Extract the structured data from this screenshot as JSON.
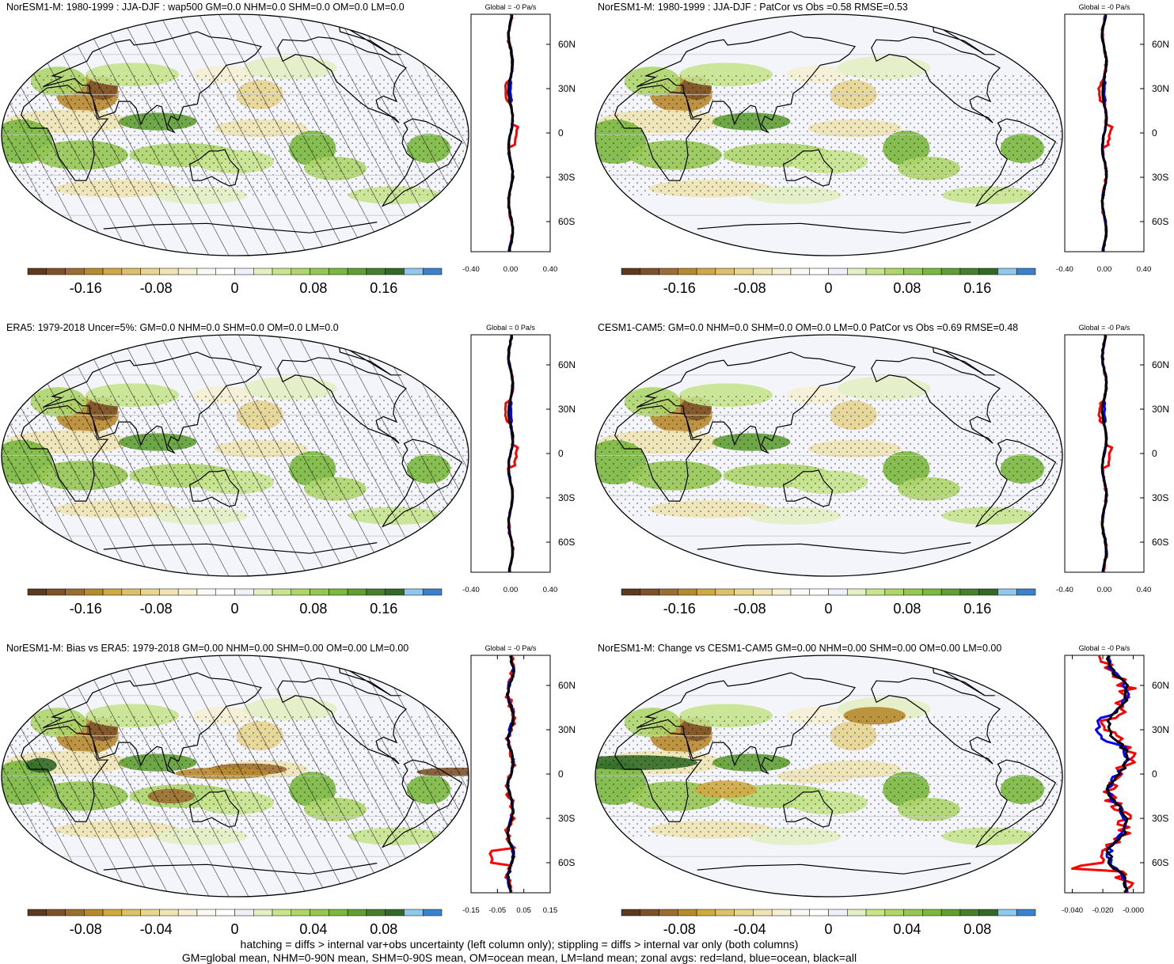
{
  "colors": {
    "palette": [
      "#5c3a1d",
      "#7d5229",
      "#9c6d33",
      "#b88a2f",
      "#cfa942",
      "#dcc16c",
      "#e8d591",
      "#f0e4b4",
      "#f5efd4",
      "#fafaf2",
      "#ffffff",
      "#eef0fa",
      "#e3f0c4",
      "#c8e48e",
      "#aed66b",
      "#96c753",
      "#7ab83f",
      "#5f9f34",
      "#477f2c",
      "#316a27",
      "#8ec8ea",
      "#3a82cc"
    ],
    "ocean": "#f4f5fb",
    "land_line": "#000000",
    "zonal_land": "#ff0000",
    "zonal_ocean": "#0000ff",
    "zonal_all": "#000000"
  },
  "panels": [
    {
      "id": "p1",
      "title": "NorESM1-M: 1980-1999 : JJA-DJF : wap500 GM=0.0 NHM=0.0 SHM=0.0 OM=0.0 LM=0.0",
      "zonal_title": "Global = -0 Pa/s",
      "hatched": true,
      "cb_labels": [
        "-0.16",
        "-0.08",
        "0",
        "0.08",
        "0.16"
      ],
      "zonal_ticks": [
        "-0.40",
        "0.00",
        "0.40"
      ],
      "zonal_lat_labels": [
        "60N",
        "30N",
        "0",
        "30S",
        "60S"
      ]
    },
    {
      "id": "p2",
      "title": "NorESM1-M: 1980-1999 : JJA-DJF : PatCor vs Obs =0.58 RMSE=0.53",
      "zonal_title": "Global = -0 Pa/s",
      "hatched": false,
      "cb_labels": [
        "-0.16",
        "-0.08",
        "0",
        "0.08",
        "0.16"
      ],
      "zonal_ticks": [
        "-0.40",
        "0.00",
        "0.40"
      ],
      "zonal_lat_labels": [
        "60N",
        "30N",
        "0",
        "30S",
        "60S"
      ]
    },
    {
      "id": "p3",
      "title": "ERA5: 1979-2018 Uncer=5%: GM=0.0 NHM=0.0 SHM=0.0 OM=0.0 LM=0.0",
      "zonal_title": "Global = 0 Pa/s",
      "hatched": true,
      "cb_labels": [
        "-0.16",
        "-0.08",
        "0",
        "0.08",
        "0.16"
      ],
      "zonal_ticks": [
        "-0.40",
        "0.00",
        "0.40"
      ],
      "zonal_lat_labels": [
        "60N",
        "30N",
        "0",
        "30S",
        "60S"
      ]
    },
    {
      "id": "p4",
      "title": "CESM1-CAM5: GM=0.0 NHM=0.0 SHM=0.0 OM=0.0 LM=0.0 PatCor vs Obs =0.69 RMSE=0.48",
      "zonal_title": "Global = -0 Pa/s",
      "hatched": false,
      "cb_labels": [
        "-0.16",
        "-0.08",
        "0",
        "0.08",
        "0.16"
      ],
      "zonal_ticks": [
        "-0.40",
        "0.00",
        "0.40"
      ],
      "zonal_lat_labels": [
        "60N",
        "30N",
        "0",
        "30S",
        "60S"
      ]
    },
    {
      "id": "p5",
      "title": "NorESM1-M: Bias vs ERA5: 1979-2018 GM=0.00 NHM=0.00 SHM=0.00 OM=0.00 LM=0.00",
      "zonal_title": "Global = -0 Pa/s",
      "hatched": true,
      "cb_labels": [
        "-0.08",
        "-0.04",
        "0",
        "0.04",
        "0.08"
      ],
      "zonal_ticks": [
        "-0.15",
        "-0.05",
        "0.05",
        "0.15"
      ],
      "zonal_lat_labels": [
        "60N",
        "30N",
        "0",
        "30S",
        "60S"
      ]
    },
    {
      "id": "p6",
      "title": "NorESM1-M: Change vs CESM1-CAM5 GM=0.00 NHM=0.00 SHM=0.00 OM=0.00 LM=0.00",
      "zonal_title": "Global = -0 Pa/s",
      "hatched": false,
      "cb_labels": [
        "-0.08",
        "-0.04",
        "0",
        "0.04",
        "0.08"
      ],
      "zonal_ticks": [
        "-0.040",
        "-0.020",
        "-0.000"
      ],
      "zonal_lat_labels": [
        "60N",
        "30N",
        "0",
        "30S",
        "60S"
      ]
    }
  ],
  "footer": {
    "line1": "hatching = diffs > internal var+obs uncertainty (left column only); stippling = diffs > internal var only (both columns)",
    "line2": "GM=global mean, NHM=0-90N mean, SHM=0-90S mean, OM=ocean mean, LM=land mean; zonal avgs: red=land, blue=ocean, black=all"
  },
  "chart_data": [
    {
      "type": "heatmap",
      "title": "NorESM1-M: 1980-1999 : JJA-DJF : wap500 GM=0.0 NHM=0.0 SHM=0.0 OM=0.0 LM=0.0",
      "colorbar_labels": [
        -0.16,
        -0.08,
        0,
        0.08,
        0.16
      ],
      "zonal_mean_xlim": [
        -0.4,
        0.4
      ],
      "zonal_mean_title": "Global = -0 Pa/s",
      "series": [
        {
          "name": "red=land"
        },
        {
          "name": "blue=ocean"
        },
        {
          "name": "black=all"
        }
      ]
    },
    {
      "type": "heatmap",
      "title": "NorESM1-M: 1980-1999 : JJA-DJF : PatCor vs Obs =0.58 RMSE=0.53",
      "colorbar_labels": [
        -0.16,
        -0.08,
        0,
        0.08,
        0.16
      ],
      "zonal_mean_xlim": [
        -0.4,
        0.4
      ],
      "zonal_mean_title": "Global = -0 Pa/s"
    },
    {
      "type": "heatmap",
      "title": "ERA5: 1979-2018 Uncer=5%: GM=0.0 NHM=0.0 SHM=0.0 OM=0.0 LM=0.0",
      "colorbar_labels": [
        -0.16,
        -0.08,
        0,
        0.08,
        0.16
      ],
      "zonal_mean_xlim": [
        -0.4,
        0.4
      ],
      "zonal_mean_title": "Global = 0 Pa/s"
    },
    {
      "type": "heatmap",
      "title": "CESM1-CAM5: GM=0.0 NHM=0.0 SHM=0.0 OM=0.0 LM=0.0 PatCor vs Obs =0.69 RMSE=0.48",
      "colorbar_labels": [
        -0.16,
        -0.08,
        0,
        0.08,
        0.16
      ],
      "zonal_mean_xlim": [
        -0.4,
        0.4
      ],
      "zonal_mean_title": "Global = -0 Pa/s"
    },
    {
      "type": "heatmap",
      "title": "NorESM1-M: Bias vs ERA5: 1979-2018 GM=0.00 NHM=0.00 SHM=0.00 OM=0.00 LM=0.00",
      "colorbar_labels": [
        -0.08,
        -0.04,
        0,
        0.04,
        0.08
      ],
      "zonal_mean_xlim": [
        -0.15,
        0.15
      ],
      "zonal_mean_title": "Global = -0 Pa/s"
    },
    {
      "type": "heatmap",
      "title": "NorESM1-M: Change vs CESM1-CAM5 GM=0.00 NHM=0.00 SHM=0.00 OM=0.00 LM=0.00",
      "colorbar_labels": [
        -0.08,
        -0.04,
        0,
        0.04,
        0.08
      ],
      "zonal_mean_xlim": [
        -0.04,
        0.005
      ],
      "zonal_mean_title": "Global = -0 Pa/s"
    }
  ]
}
